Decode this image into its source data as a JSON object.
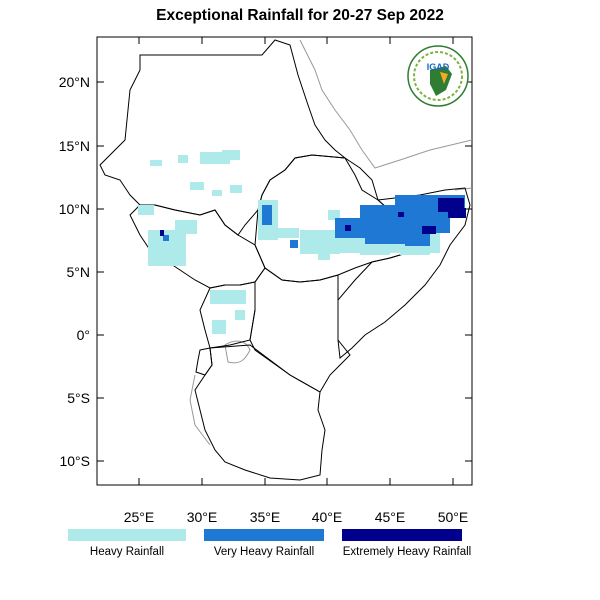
{
  "title": "Exceptional Rainfall for 20-27 Sep 2022",
  "logo_text": "IGAD",
  "lat_ticks": [
    "20°N",
    "15°N",
    "10°N",
    "5°N",
    "0°",
    "5°S",
    "10°S"
  ],
  "lon_ticks": [
    "25°E",
    "30°E",
    "35°E",
    "40°E",
    "45°E",
    "50°E"
  ],
  "legend": [
    {
      "label": "Heavy Rainfall",
      "color": "#aeeaea"
    },
    {
      "label": "Very Heavy Rainfall",
      "color": "#1f78d4"
    },
    {
      "label": "Extremely Heavy Rainfall",
      "color": "#00008c"
    }
  ],
  "colors": {
    "border": "#000000",
    "river": "#999999"
  }
}
